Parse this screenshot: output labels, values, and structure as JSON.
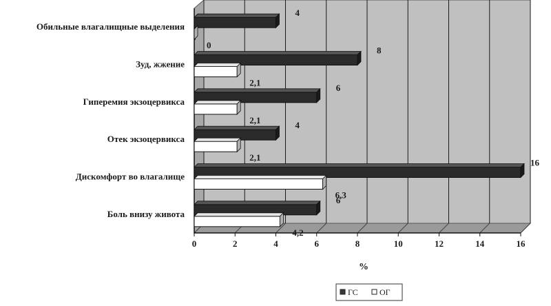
{
  "chart_data": {
    "type": "bar",
    "orientation": "horizontal",
    "style": "3d",
    "categories": [
      "Обильные влагалищные выделения",
      "Зуд, жжение",
      "Гиперемия экзоцервикса",
      "Отек экзоцервикса",
      "Дискомфорт во влагалище",
      "Боль внизу живота"
    ],
    "series": [
      {
        "name": "ГС",
        "values": [
          4,
          8,
          6,
          4,
          16,
          6
        ],
        "labels": [
          "4",
          "8",
          "6",
          "4",
          "16",
          "6"
        ],
        "color": "#3a3a3a"
      },
      {
        "name": "ОГ",
        "values": [
          0,
          2.1,
          2.1,
          2.1,
          6.3,
          4.2
        ],
        "labels": [
          "0",
          "2,1",
          "2,1",
          "2,1",
          "6,3",
          "4,2"
        ],
        "color": "#ffffff"
      }
    ],
    "xlabel": "%",
    "xlim": [
      0,
      16
    ],
    "xticks": [
      0,
      2,
      4,
      6,
      8,
      10,
      12,
      14,
      16
    ],
    "xtick_labels": [
      "0",
      "2",
      "4",
      "6",
      "8",
      "10",
      "12",
      "14",
      "16"
    ],
    "grid": true,
    "legend_position": "bottom",
    "colors": {
      "plot_background": "#c0c0c0",
      "wall": "#a8a8a8",
      "gridline": "#1a1a1a"
    }
  }
}
